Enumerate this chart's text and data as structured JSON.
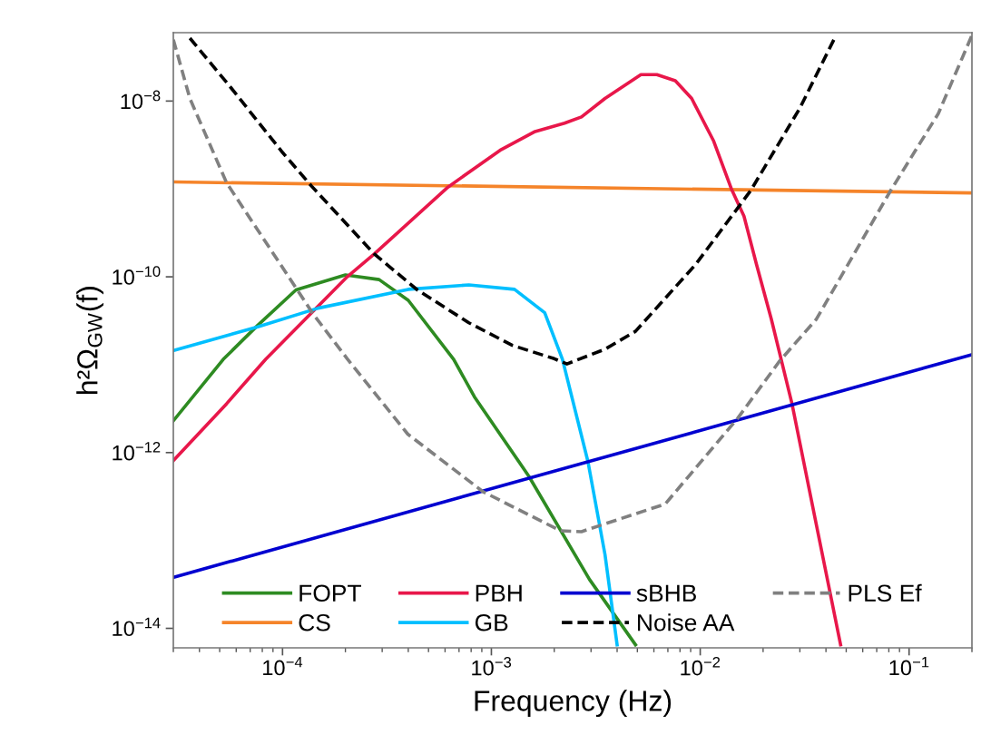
{
  "chart_data": {
    "type": "line",
    "xlabel": "Frequency (Hz)",
    "ylabel": "h²Ω$_{GW}$(f)",
    "log": "xy",
    "xlim": [
      3e-05,
      0.2
    ],
    "ylim": [
      6e-15,
      6e-08
    ],
    "xticks": [
      {
        "value": 0.0001,
        "label": "10$^{−4}$"
      },
      {
        "value": 0.001,
        "label": "10$^{−3}$"
      },
      {
        "value": 0.01,
        "label": "10$^{−2}$"
      },
      {
        "value": 0.1,
        "label": "10$^{−1}$"
      }
    ],
    "yticks": [
      {
        "value": 1e-14,
        "label": "10$^{−14}$"
      },
      {
        "value": 1e-12,
        "label": "10$^{−12}$"
      },
      {
        "value": 1e-10,
        "label": "10$^{−10}$"
      },
      {
        "value": 1e-08,
        "label": "10$^{−8}$"
      }
    ],
    "grid": false,
    "legend": "bottom",
    "series": [
      {
        "name": "FOPT",
        "color": "#2e8b22",
        "line_style": "solid",
        "x": [
          3e-05,
          5.2e-05,
          7.6e-05,
          0.000116,
          0.0002,
          0.00029,
          0.0004,
          0.00066,
          0.00083,
          0.00151,
          0.00295,
          0.0049
        ],
        "values": [
          2.3e-12,
          1.15e-11,
          2.8e-11,
          7.1e-11,
          1.05e-10,
          9.3e-11,
          5.4e-11,
          1.15e-11,
          4.3e-12,
          5.4e-13,
          3.6e-14,
          6.5e-15
        ]
      },
      {
        "name": "CS",
        "color": "#f5842a",
        "line_style": "solid",
        "x": [
          3e-05,
          0.2
        ],
        "values": [
          1.2e-09,
          9e-10
        ]
      },
      {
        "name": "PBH",
        "color": "#e8174a",
        "line_style": "solid",
        "x": [
          3e-05,
          5.4e-05,
          8.3e-05,
          0.000204,
          0.000275,
          0.00062,
          0.0011,
          0.00162,
          0.00224,
          0.0027,
          0.0035,
          0.0052,
          0.0062,
          0.0076,
          0.0091,
          0.0116,
          0.0141,
          0.0162,
          0.0186,
          0.0219,
          0.0275,
          0.036,
          0.047
        ],
        "values": [
          8.1e-13,
          3.6e-12,
          1.15e-11,
          1e-10,
          1.82e-10,
          1.05e-09,
          2.75e-09,
          4.5e-09,
          5.6e-09,
          6.6e-09,
          1.07e-08,
          2e-08,
          2e-08,
          1.7e-08,
          1.07e-08,
          3.5e-09,
          1e-09,
          4.9e-10,
          1.38e-10,
          3.3e-11,
          3.6e-12,
          1.5e-13,
          6.5e-15
        ]
      },
      {
        "name": "GB",
        "color": "#00bfff",
        "line_style": "solid",
        "x": [
          3e-05,
          7.6e-05,
          0.000148,
          0.0004,
          0.00078,
          0.00129,
          0.0018,
          0.00219,
          0.0029,
          0.0035,
          0.004
        ],
        "values": [
          1.45e-11,
          2.7e-11,
          4.4e-11,
          7.2e-11,
          8.1e-11,
          7.2e-11,
          3.9e-11,
          1.15e-11,
          7.9e-13,
          6.9e-14,
          6.5e-15
        ]
      },
      {
        "name": "sBHB",
        "color": "#0000d0",
        "line_style": "solid",
        "x": [
          3e-05,
          0.2
        ],
        "values": [
          3.8e-14,
          1.3e-11
        ]
      },
      {
        "name": "Noise AA",
        "color": "#000000",
        "line_style": "dashed",
        "x": [
          3.6e-05,
          5.62e-05,
          0.0001,
          0.000138,
          0.000275,
          0.000442,
          0.00078,
          0.00126,
          0.002,
          0.0023,
          0.0035,
          0.0049,
          0.0095,
          0.0174,
          0.03,
          0.044
        ],
        "values": [
          5.2e-08,
          1.45e-08,
          2.6e-09,
          1.07e-09,
          1.82e-10,
          7.1e-11,
          3e-11,
          1.66e-11,
          1.17e-11,
          1.02e-11,
          1.5e-11,
          2.4e-11,
          1.38e-10,
          9.5e-10,
          8.3e-09,
          5.2e-08
        ]
      },
      {
        "name": "PLS Ef",
        "color": "#808080",
        "line_style": "dashed",
        "x": [
          3e-05,
          3.6e-05,
          5.4e-05,
          0.000141,
          0.000204,
          0.000398,
          0.00091,
          0.00214,
          0.0027,
          0.0068,
          0.0151,
          0.024,
          0.036,
          0.081,
          0.138,
          0.2
        ],
        "values": [
          5e-08,
          1.07e-08,
          1.17e-09,
          3.7e-11,
          1.17e-11,
          1.62e-12,
          3.6e-13,
          1.29e-13,
          1.26e-13,
          2.6e-13,
          2.45e-12,
          1.1e-11,
          3.3e-11,
          9.3e-10,
          7.2e-09,
          5.6e-08
        ]
      }
    ]
  }
}
